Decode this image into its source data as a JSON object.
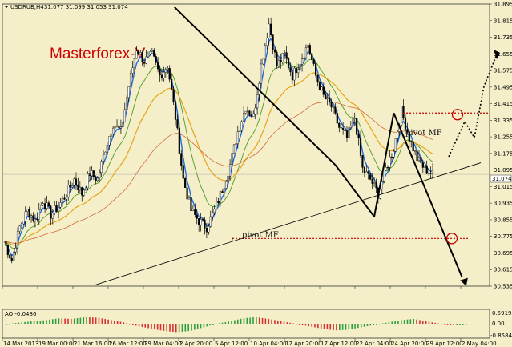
{
  "header": {
    "symbol_label": "USDRUB,H4",
    "ohlc": "31.077 31.099 31.053 31.074",
    "brand": "Masterforex-V"
  },
  "indicator": {
    "label": "AO -0.0486",
    "ticks": [
      "0.5919",
      "0.00",
      "-0.8584"
    ]
  },
  "annotations": {
    "pivot_upper": "pivot MF",
    "pivot_lower": "pivot MF"
  },
  "colors": {
    "background": "#f4efc9",
    "candle": "#000000",
    "ma_fast": "#1f6fe0",
    "ma_mid": "#4c9a2a",
    "ma_slow": "#e8a317",
    "ma_long": "#d2693c",
    "pivot_line": "#c00000",
    "ao_up": "#2e9e3a",
    "ao_down": "#d83030"
  },
  "chart_data": {
    "type": "candlestick",
    "price_axis_ticks": [
      "31.895",
      "31.815",
      "31.735",
      "31.655",
      "31.575",
      "31.495",
      "31.415",
      "31.335",
      "31.255",
      "31.175",
      "31.095",
      "31.015",
      "30.935",
      "30.855",
      "30.775",
      "30.695",
      "30.615",
      "30.535"
    ],
    "current_price_tag": "31.074",
    "ylim": [
      30.535,
      31.895
    ],
    "time_axis_ticks": [
      "14 Mar 2013",
      "19 Mar 00:00",
      "21 Mar 16:00",
      "26 Mar 12:00",
      "29 Mar 04:00",
      "2 Apr 20:00",
      "5 Apr 12:00",
      "10 Apr 04:00",
      "12 Apr 20:00",
      "17 Apr 12:00",
      "22 Apr 04:00",
      "24 Apr 20:00",
      "29 Apr 12:00",
      "2 May 04:00"
    ],
    "close_path": [
      [
        0,
        30.75
      ],
      [
        4,
        30.66
      ],
      [
        8,
        30.82
      ],
      [
        12,
        30.9
      ],
      [
        16,
        30.85
      ],
      [
        20,
        30.95
      ],
      [
        24,
        30.88
      ],
      [
        28,
        30.92
      ],
      [
        32,
        30.98
      ],
      [
        36,
        31.05
      ],
      [
        40,
        30.98
      ],
      [
        44,
        31.08
      ],
      [
        48,
        31.05
      ],
      [
        52,
        31.2
      ],
      [
        56,
        31.32
      ],
      [
        60,
        31.28
      ],
      [
        64,
        31.5
      ],
      [
        68,
        31.68
      ],
      [
        72,
        31.62
      ],
      [
        76,
        31.65
      ],
      [
        80,
        31.55
      ],
      [
        84,
        31.6
      ],
      [
        88,
        31.35
      ],
      [
        92,
        31.05
      ],
      [
        96,
        30.9
      ],
      [
        100,
        30.85
      ],
      [
        104,
        30.82
      ],
      [
        108,
        30.9
      ],
      [
        112,
        31.0
      ],
      [
        116,
        31.12
      ],
      [
        120,
        31.28
      ],
      [
        124,
        31.4
      ],
      [
        128,
        31.35
      ],
      [
        132,
        31.6
      ],
      [
        136,
        31.8
      ],
      [
        140,
        31.6
      ],
      [
        144,
        31.65
      ],
      [
        148,
        31.55
      ],
      [
        152,
        31.62
      ],
      [
        156,
        31.7
      ],
      [
        160,
        31.55
      ],
      [
        164,
        31.45
      ],
      [
        168,
        31.4
      ],
      [
        172,
        31.3
      ],
      [
        176,
        31.25
      ],
      [
        180,
        31.35
      ],
      [
        184,
        31.1
      ],
      [
        188,
        31.05
      ],
      [
        192,
        30.98
      ],
      [
        196,
        31.1
      ],
      [
        200,
        31.2
      ],
      [
        204,
        31.38
      ],
      [
        208,
        31.25
      ],
      [
        212,
        31.15
      ],
      [
        216,
        31.1
      ],
      [
        220,
        31.074
      ]
    ],
    "drawn_lines": [
      {
        "name": "trend-line-1",
        "points": [
          [
            35,
            31.88
          ],
          [
            68,
            31.12
          ]
        ]
      },
      {
        "name": "trend-line-2",
        "points": [
          [
            68,
            31.12
          ],
          [
            76,
            30.87
          ]
        ]
      },
      {
        "name": "trend-line-3",
        "points": [
          [
            76,
            30.87
          ],
          [
            80,
            31.37
          ]
        ]
      },
      {
        "name": "trend-line-4",
        "points": [
          [
            80,
            31.37
          ],
          [
            94,
            30.58
          ]
        ]
      },
      {
        "name": "support-line",
        "points": [
          [
            0,
            30.54
          ],
          [
            100,
            31.13
          ]
        ]
      }
    ],
    "pivot_levels": [
      31.37,
      30.765
    ],
    "ao_values": [
      -0.05,
      0.1,
      0.2,
      0.3,
      0.45,
      0.4,
      0.55,
      0.5,
      0.3,
      0.1,
      -0.2,
      -0.4,
      -0.6,
      -0.7,
      -0.6,
      -0.3,
      0.0,
      0.2,
      0.45,
      0.55,
      0.4,
      0.2,
      0.0,
      -0.2,
      -0.4,
      -0.55,
      -0.5,
      -0.3,
      -0.1,
      0.1,
      0.3,
      0.4,
      0.2,
      0.0,
      -0.1,
      -0.05
    ]
  }
}
